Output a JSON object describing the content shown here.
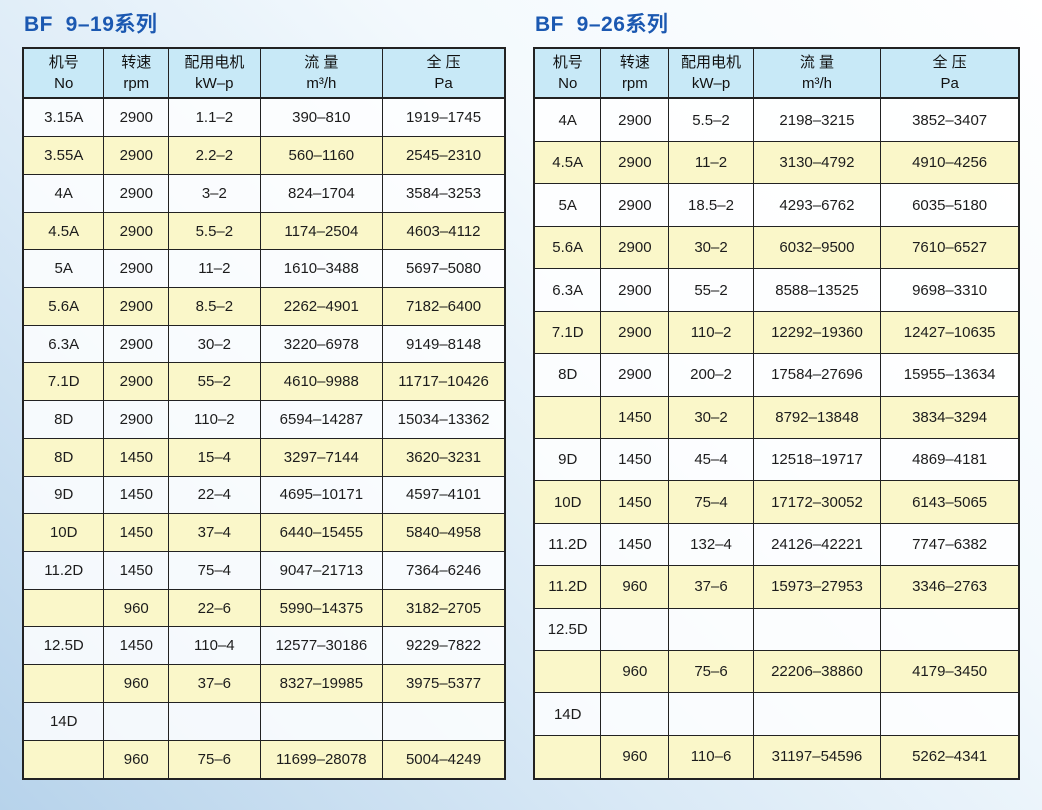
{
  "page": {
    "background_top_right": "#ffffff",
    "background_bottom_left": "#b7d3eb",
    "title_color": "#1b58b1",
    "header_fill": "#c8e9f7",
    "alt_row_fill": "#faf7c9",
    "border_color": "#222222"
  },
  "tables": [
    {
      "title": "BF  9–19系列",
      "columns": [
        {
          "zh": "机号",
          "en": "No"
        },
        {
          "zh": "转速",
          "en": "rpm"
        },
        {
          "zh": "配用电机",
          "en": "kW–p"
        },
        {
          "zh": "流 量",
          "en": "m³/h"
        },
        {
          "zh": "全 压",
          "en": "Pa"
        }
      ],
      "rows": [
        [
          "3.15A",
          "2900",
          "1.1–2",
          "390–810",
          "1919–1745"
        ],
        [
          "3.55A",
          "2900",
          "2.2–2",
          "560–1160",
          "2545–2310"
        ],
        [
          "4A",
          "2900",
          "3–2",
          "824–1704",
          "3584–3253"
        ],
        [
          "4.5A",
          "2900",
          "5.5–2",
          "1174–2504",
          "4603–4112"
        ],
        [
          "5A",
          "2900",
          "11–2",
          "1610–3488",
          "5697–5080"
        ],
        [
          "5.6A",
          "2900",
          "8.5–2",
          "2262–4901",
          "7182–6400"
        ],
        [
          "6.3A",
          "2900",
          "30–2",
          "3220–6978",
          "9149–8148"
        ],
        [
          "7.1D",
          "2900",
          "55–2",
          "4610–9988",
          "11717–10426"
        ],
        [
          "8D",
          "2900",
          "110–2",
          "6594–14287",
          "15034–13362"
        ],
        [
          "8D",
          "1450",
          "15–4",
          "3297–7144",
          "3620–3231"
        ],
        [
          "9D",
          "1450",
          "22–4",
          "4695–10171",
          "4597–4101"
        ],
        [
          "10D",
          "1450",
          "37–4",
          "6440–15455",
          "5840–4958"
        ],
        [
          "11.2D",
          "1450",
          "75–4",
          "9047–21713",
          "7364–6246"
        ],
        [
          "",
          "960",
          "22–6",
          "5990–14375",
          "3182–2705"
        ],
        [
          "12.5D",
          "1450",
          "110–4",
          "12577–30186",
          "9229–7822"
        ],
        [
          "",
          "960",
          "37–6",
          "8327–19985",
          "3975–5377"
        ],
        [
          "14D",
          "",
          "",
          "",
          ""
        ],
        [
          "",
          "960",
          "75–6",
          "11699–28078",
          "5004–4249"
        ]
      ]
    },
    {
      "title": "BF  9–26系列",
      "columns": [
        {
          "zh": "机号",
          "en": "No"
        },
        {
          "zh": "转速",
          "en": "rpm"
        },
        {
          "zh": "配用电机",
          "en": "kW–p"
        },
        {
          "zh": "流 量",
          "en": "m³/h"
        },
        {
          "zh": "全 压",
          "en": "Pa"
        }
      ],
      "rows": [
        [
          "4A",
          "2900",
          "5.5–2",
          "2198–3215",
          "3852–3407"
        ],
        [
          "4.5A",
          "2900",
          "11–2",
          "3130–4792",
          "4910–4256"
        ],
        [
          "5A",
          "2900",
          "18.5–2",
          "4293–6762",
          "6035–5180"
        ],
        [
          "5.6A",
          "2900",
          "30–2",
          "6032–9500",
          "7610–6527"
        ],
        [
          "6.3A",
          "2900",
          "55–2",
          "8588–13525",
          "9698–3310"
        ],
        [
          "7.1D",
          "2900",
          "110–2",
          "12292–19360",
          "12427–10635"
        ],
        [
          "8D",
          "2900",
          "200–2",
          "17584–27696",
          "15955–13634"
        ],
        [
          "",
          "1450",
          "30–2",
          "8792–13848",
          "3834–3294"
        ],
        [
          "9D",
          "1450",
          "45–4",
          "12518–19717",
          "4869–4181"
        ],
        [
          "10D",
          "1450",
          "75–4",
          "17172–30052",
          "6143–5065"
        ],
        [
          "11.2D",
          "1450",
          "132–4",
          "24126–42221",
          "7747–6382"
        ],
        [
          "11.2D",
          "960",
          "37–6",
          "15973–27953",
          "3346–2763"
        ],
        [
          "12.5D",
          "",
          "",
          "",
          ""
        ],
        [
          "",
          "960",
          "75–6",
          "22206–38860",
          "4179–3450"
        ],
        [
          "14D",
          "",
          "",
          "",
          ""
        ],
        [
          "",
          "960",
          "110–6",
          "31197–54596",
          "5262–4341"
        ]
      ]
    }
  ]
}
